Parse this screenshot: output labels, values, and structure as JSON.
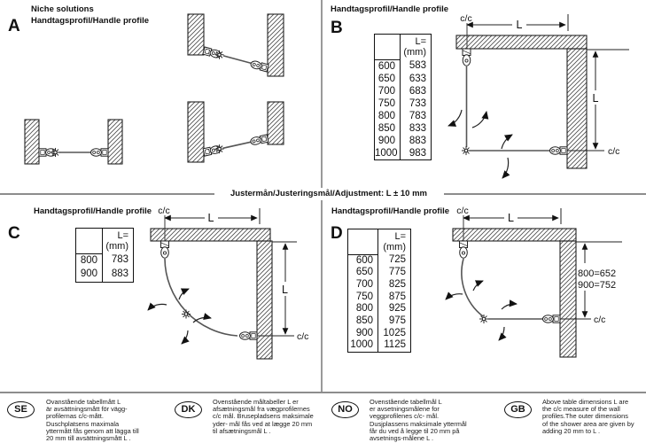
{
  "page": {
    "adjustment_band": "Justermån/Justeringsmål/Adjustment: L ± 10 mm"
  },
  "sections": {
    "a": {
      "letter": "A",
      "title": "Niche solutions\nHandtagsprofil/Handle profile"
    },
    "b": {
      "letter": "B",
      "title": "Handtagsprofil/Handle profile",
      "table": {
        "header": "L=\n(mm)",
        "rows": [
          [
            "600",
            "583"
          ],
          [
            "650",
            "633"
          ],
          [
            "700",
            "683"
          ],
          [
            "750",
            "733"
          ],
          [
            "800",
            "783"
          ],
          [
            "850",
            "833"
          ],
          [
            "900",
            "883"
          ],
          [
            "1000",
            "983"
          ]
        ]
      },
      "labels": {
        "cc_top": "c/c",
        "cc_right": "c/c",
        "dim_top": "L",
        "dim_right": "L"
      }
    },
    "c": {
      "letter": "C",
      "title": "Handtagsprofil/Handle profile",
      "table": {
        "header": "L=\n(mm)",
        "rows": [
          [
            "800",
            "783"
          ],
          [
            "900",
            "883"
          ]
        ]
      },
      "labels": {
        "cc_top": "c/c",
        "cc_right": "c/c",
        "dim_top": "L",
        "dim_right": "L"
      }
    },
    "d": {
      "letter": "D",
      "title": "Handtagsprofil/Handle profile",
      "table": {
        "header": "L=\n(mm)",
        "rows": [
          [
            "600",
            "725"
          ],
          [
            "650",
            "775"
          ],
          [
            "700",
            "825"
          ],
          [
            "750",
            "875"
          ],
          [
            "800",
            "925"
          ],
          [
            "850",
            "975"
          ],
          [
            "900",
            "1025"
          ],
          [
            "1000",
            "1125"
          ]
        ]
      },
      "labels": {
        "cc_top": "c/c",
        "cc_right": "c/c",
        "dim_top": "L",
        "note_800": "800=652",
        "note_900": "900=752"
      }
    }
  },
  "footer": {
    "notes": [
      {
        "code": "SE",
        "text": "Ovanstående tabellmått L\när avsättningsmått för vägg-\nprofilernas c/c-mått.\nDuschplatsens maximala\nyttermått fås genom att lägga till\n20 mm till avsättningsmått L ."
      },
      {
        "code": "DK",
        "text": "Ovenstående måltabeller L er\nafsætningsmål fra vægprofilernes\nc/c mål. Brusepladsens maksimale\nyder- mål fås ved at lægge 20 mm\ntil afsætningsmål L ."
      },
      {
        "code": "NO",
        "text": "Ovenstående tabellmål L\ner avsetningsmålene for\nveggprofilenes c/c- mål.\nDusjplassens maksimale yttermål\nfår du ved å legge til 20 mm på\navsetnings-målene L ."
      },
      {
        "code": "GB",
        "text": "Above table dimensions L are\nthe c/c measure of the wall\nprofiles.The outer dimensions\nof the shower area are given by\nadding 20 mm to L ."
      }
    ]
  }
}
